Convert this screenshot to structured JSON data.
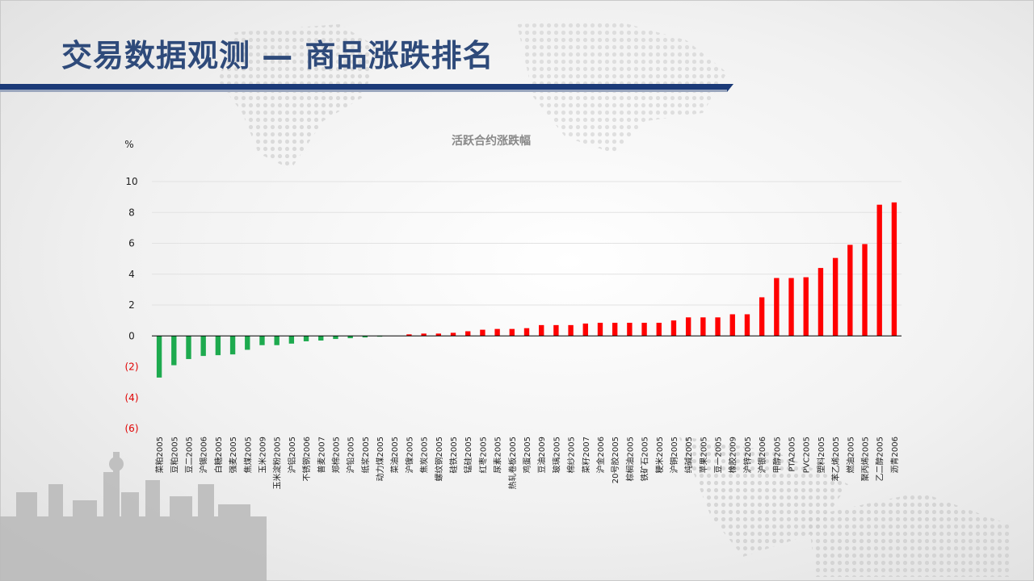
{
  "slide": {
    "title": "交易数据观测 — 商品涨跌排名"
  },
  "colors": {
    "title": "#2E4A7A",
    "bar_bar_navy": "#1B3A78",
    "up": "#FF0000",
    "down": "#1DAA4E",
    "neg_label": "#E00000"
  },
  "chart_data": {
    "type": "bar",
    "title": "活跃合约涨跌幅",
    "ylabel": "%",
    "ylim": [
      -6,
      10
    ],
    "yticks": [
      10,
      8,
      6,
      4,
      2,
      0,
      -2,
      -4,
      -6
    ],
    "ytick_labels": [
      "10",
      "8",
      "6",
      "4",
      "2",
      "0",
      "(2)",
      "(4)",
      "(6)"
    ],
    "categories": [
      "菜粕2005",
      "豆粕2005",
      "豆二2005",
      "沪锡2006",
      "白糖2005",
      "强麦2005",
      "焦煤2005",
      "玉米2009",
      "玉米淀粉2005",
      "沪铝2005",
      "不锈钢2006",
      "普麦2007",
      "郑棉2005",
      "沪铅2005",
      "纸浆2005",
      "动力煤2005",
      "菜油2005",
      "沪镍2005",
      "焦炭2005",
      "螺纹钢2005",
      "硅铁2005",
      "锰硅2005",
      "红枣2005",
      "尿素2005",
      "热轧卷板2005",
      "鸡蛋2005",
      "豆油2009",
      "玻璃2005",
      "棉纱2005",
      "菜籽2007",
      "沪金2006",
      "20号胶2005",
      "棕榈油2005",
      "铁矿石2005",
      "粳米2005",
      "沪铜2005",
      "纯碱2005",
      "苹果2005",
      "豆一2005",
      "橡胶2009",
      "沪锌2005",
      "沪银2006",
      "甲醇2005",
      "PTA2005",
      "PVC2005",
      "塑料2005",
      "苯乙烯2005",
      "燃油2005",
      "聚丙烯2005",
      "乙二醇2005",
      "沥青2006"
    ],
    "values": [
      -2.7,
      -1.9,
      -1.5,
      -1.3,
      -1.25,
      -1.2,
      -0.9,
      -0.6,
      -0.6,
      -0.5,
      -0.35,
      -0.3,
      -0.2,
      -0.15,
      -0.1,
      -0.05,
      0.0,
      0.1,
      0.15,
      0.15,
      0.2,
      0.3,
      0.4,
      0.45,
      0.45,
      0.5,
      0.7,
      0.7,
      0.7,
      0.8,
      0.85,
      0.85,
      0.85,
      0.85,
      0.85,
      1.0,
      1.2,
      1.2,
      1.2,
      1.4,
      1.4,
      2.5,
      3.75,
      3.75,
      3.8,
      4.4,
      5.05,
      5.9,
      5.95,
      8.5,
      8.65
    ]
  }
}
